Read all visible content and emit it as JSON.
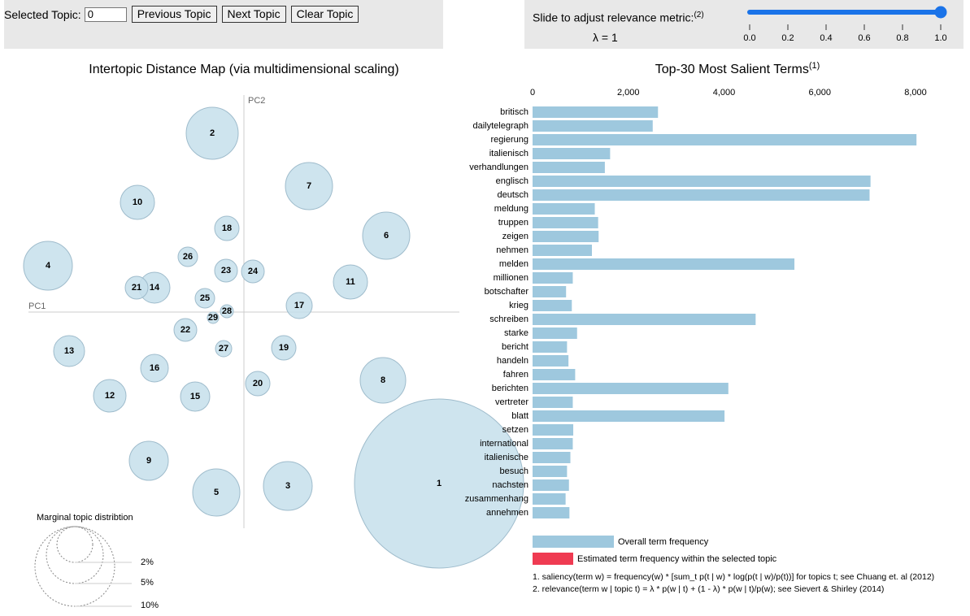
{
  "controls": {
    "selected_topic_label": "Selected Topic:",
    "selected_topic_value": "0",
    "prev_label": "Previous Topic",
    "next_label": "Next Topic",
    "clear_label": "Clear Topic",
    "slider_label": "Slide to adjust relevance metric:",
    "slider_note": "(2)",
    "lambda_text": "λ = 1",
    "lambda_value": 1,
    "slider_ticks": [
      "0.0",
      "0.2",
      "0.4",
      "0.6",
      "0.8",
      "1.0"
    ]
  },
  "intertopic": {
    "title": "Intertopic Distance Map (via multidimensional scaling)",
    "pc1": "PC1",
    "pc2": "PC2",
    "topics": [
      "1",
      "2",
      "3",
      "4",
      "5",
      "6",
      "7",
      "8",
      "9",
      "10",
      "11",
      "12",
      "13",
      "14",
      "15",
      "16",
      "17",
      "18",
      "19",
      "20",
      "21",
      "22",
      "23",
      "24",
      "25",
      "26",
      "27",
      "28",
      "29"
    ],
    "marginal_title": "Marginal topic distribtion",
    "marginal_labels": [
      "2%",
      "5%",
      "10%"
    ]
  },
  "chart_data": {
    "type": "bar",
    "title": "Top-30 Most Salient Terms",
    "title_note": "(1)",
    "xticks": [
      "0",
      "2,000",
      "4,000",
      "6,000",
      "8,000"
    ],
    "xlim": [
      0,
      8500
    ],
    "categories": [
      "britisch",
      "dailytelegraph",
      "regierung",
      "italienisch",
      "verhandlungen",
      "englisch",
      "deutsch",
      "meldung",
      "truppen",
      "zeigen",
      "nehmen",
      "melden",
      "millionen",
      "botschafter",
      "krieg",
      "schreiben",
      "starke",
      "bericht",
      "handeln",
      "fahren",
      "berichten",
      "vertreter",
      "blatt",
      "setzen",
      "international",
      "italienische",
      "besuch",
      "nachsten",
      "zusammenhang",
      "annehmen"
    ],
    "series": [
      {
        "name": "Overall term frequency",
        "values": [
          2620,
          2510,
          8020,
          1620,
          1510,
          7060,
          7040,
          1300,
          1370,
          1380,
          1240,
          5470,
          840,
          700,
          820,
          4660,
          930,
          720,
          750,
          890,
          4090,
          840,
          4010,
          850,
          840,
          790,
          720,
          760,
          690,
          770
        ]
      }
    ],
    "legend": [
      "Overall term frequency",
      "Estimated term frequency within the selected topic"
    ],
    "colors": {
      "overall": "#9ec8de",
      "estimated": "#ef3b52"
    }
  },
  "footnotes": [
    "1. saliency(term w) = frequency(w) * [sum_t p(t | w) * log(p(t | w)/p(t))] for topics t; see Chuang et. al (2012)",
    "2. relevance(term w | topic t) = λ * p(w | t) + (1 - λ) * p(w | t)/p(w); see Sievert & Shirley (2014)"
  ]
}
